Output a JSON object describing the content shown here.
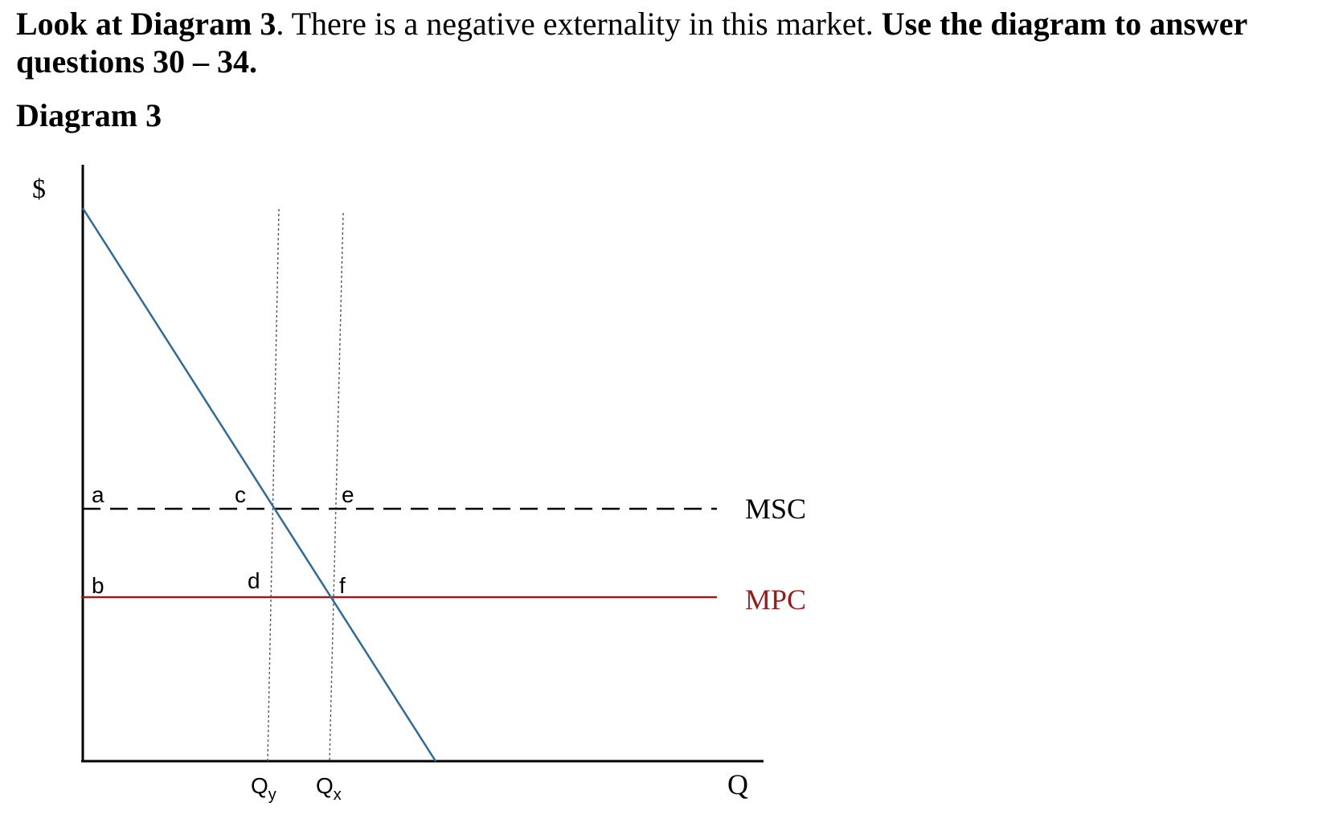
{
  "intro": {
    "part1": "Look at Diagram 3",
    "part2": ". There is a negative externality in this market. ",
    "part3": "Use the diagram to answer questions 30 – 34."
  },
  "heading": "Diagram 3",
  "diagram": {
    "y_axis_label": "$",
    "x_axis_label": "Q",
    "curves": {
      "msc": {
        "label": "MSC",
        "color": "#000000"
      },
      "mpc": {
        "label": "MPC",
        "color": "#9a1b1b"
      },
      "demand": {
        "color": "#2f6b9a"
      }
    },
    "points": {
      "a": "a",
      "b": "b",
      "c": "c",
      "d": "d",
      "e": "e",
      "f": "f"
    },
    "quantities": {
      "qy": {
        "main": "Q",
        "sub": "y"
      },
      "qx": {
        "main": "Q",
        "sub": "x"
      }
    }
  }
}
